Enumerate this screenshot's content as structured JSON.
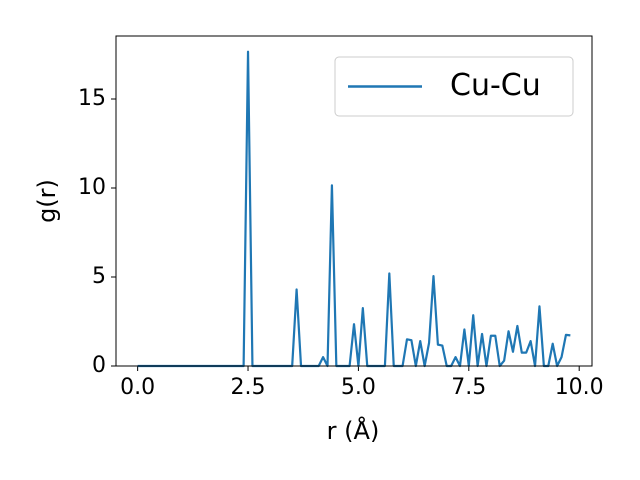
{
  "chart_data": {
    "type": "line",
    "xlabel": "r (Å)",
    "ylabel": "g(r)",
    "x": [
      0,
      0.1,
      0.2,
      0.3,
      0.4,
      0.5,
      0.6,
      0.7,
      0.8,
      0.9,
      1,
      1.1,
      1.2,
      1.3,
      1.4,
      1.5,
      1.6,
      1.7,
      1.8,
      1.9,
      2,
      2.1,
      2.2,
      2.3,
      2.4,
      2.5,
      2.6,
      2.7,
      2.8,
      2.9,
      3,
      3.1,
      3.2,
      3.3,
      3.4,
      3.5,
      3.6,
      3.7,
      3.8,
      3.9,
      4,
      4.1,
      4.2,
      4.3,
      4.4,
      4.5,
      4.6,
      4.7,
      4.8,
      4.9,
      5,
      5.1,
      5.2,
      5.3,
      5.4,
      5.5,
      5.6,
      5.7,
      5.8,
      5.9,
      6,
      6.1,
      6.2,
      6.3,
      6.4,
      6.5,
      6.6,
      6.7,
      6.8,
      6.9,
      7,
      7.1,
      7.2,
      7.3,
      7.4,
      7.5,
      7.6,
      7.7,
      7.8,
      7.9,
      8,
      8.1,
      8.2,
      8.3,
      8.4,
      8.5,
      8.6,
      8.7,
      8.8,
      8.9,
      9,
      9.1,
      9.2,
      9.3,
      9.4,
      9.5,
      9.6,
      9.7,
      9.8
    ],
    "series": [
      {
        "name": "Cu-Cu",
        "color": "#1f77b4",
        "values": [
          0,
          0,
          0,
          0,
          0,
          0,
          0,
          0,
          0,
          0,
          0,
          0,
          0,
          0,
          0,
          0,
          0,
          0,
          0,
          0,
          0,
          0,
          0,
          0,
          0,
          17.66,
          0,
          0,
          0,
          0,
          0,
          0,
          0,
          0,
          0,
          0,
          4.3,
          0,
          0,
          0,
          0,
          0,
          0.5,
          0,
          10.15,
          0,
          0,
          0,
          0,
          2.35,
          0,
          3.25,
          0,
          0,
          0,
          0,
          0,
          5.2,
          0,
          0,
          0,
          1.5,
          1.45,
          0,
          1.4,
          0,
          1.3,
          5.05,
          1.2,
          1.15,
          0,
          0,
          0.5,
          0,
          2.05,
          0,
          2.85,
          0,
          1.8,
          0,
          1.7,
          1.7,
          0,
          0.3,
          1.95,
          0.8,
          2.25,
          0.75,
          0.75,
          1.4,
          0,
          3.35,
          0,
          0,
          1.25,
          0,
          0.5,
          1.75,
          1.72
        ]
      }
    ],
    "xlim": [
      -0.49,
      10.29
    ],
    "xticks": [
      {
        "value": 0,
        "label": "0.0"
      },
      {
        "value": 2.5,
        "label": "2.5"
      },
      {
        "value": 5,
        "label": "5.0"
      },
      {
        "value": 7.5,
        "label": "7.5"
      },
      {
        "value": 10,
        "label": "10.0"
      }
    ],
    "ylim": [
      0,
      18.54
    ],
    "yticks": [
      0,
      5,
      10,
      15
    ],
    "grid": false,
    "legend": "upper right"
  }
}
